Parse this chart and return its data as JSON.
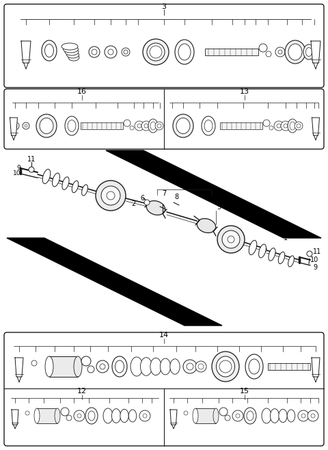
{
  "bg_color": "#ffffff",
  "line_color": "#1a1a1a",
  "fig_width": 4.8,
  "fig_height": 6.58,
  "dpi": 100
}
